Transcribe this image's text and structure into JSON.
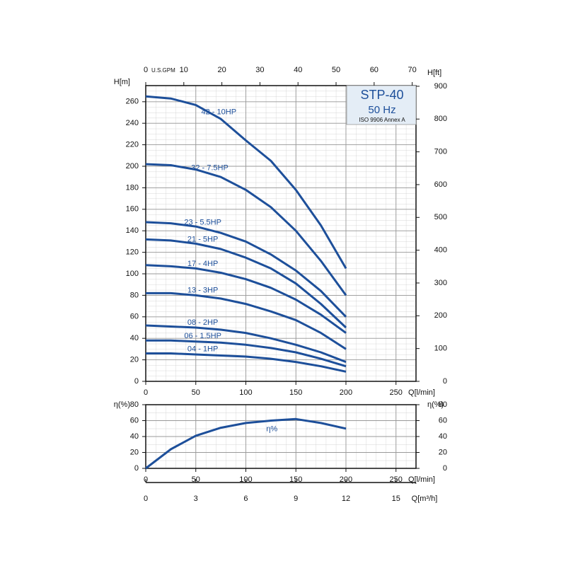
{
  "chart_data": [
    {
      "type": "line",
      "title": "STP-40",
      "subtitle": "50 Hz",
      "note": "ISO 9906 Annex A",
      "x_label": "Q[l/min]",
      "y_label": "H[m]",
      "y2_label": "H[ft]",
      "x": [
        0,
        25,
        50,
        75,
        100,
        125,
        150,
        175,
        200
      ],
      "xlim": [
        0,
        270
      ],
      "xticks": [
        0,
        50,
        100,
        150,
        200,
        250
      ],
      "ylim": [
        0,
        275
      ],
      "yticks": [
        0,
        20,
        40,
        60,
        80,
        100,
        120,
        140,
        160,
        180,
        200,
        220,
        240,
        260
      ],
      "y2lim": [
        0,
        902
      ],
      "y2ticks": [
        0,
        100,
        200,
        300,
        400,
        500,
        600,
        700,
        800,
        900
      ],
      "top_axis": {
        "label": "U.S.GPM",
        "lim": [
          0,
          71
        ],
        "ticks": [
          0,
          10,
          20,
          30,
          40,
          50,
          60,
          70
        ]
      },
      "color": "#1d4f9a",
      "grid": true,
      "series": [
        {
          "name": "42 - 10HP",
          "values": [
            265,
            263,
            257,
            244,
            224,
            205,
            178,
            145,
            105
          ]
        },
        {
          "name": "32 - 7.5HP",
          "values": [
            202,
            201,
            197,
            190,
            178,
            162,
            140,
            112,
            80
          ]
        },
        {
          "name": "23 - 5.5HP",
          "values": [
            148,
            147,
            144,
            138,
            130,
            118,
            103,
            84,
            60
          ]
        },
        {
          "name": "21 - 5HP",
          "values": [
            132,
            131,
            128,
            123,
            115,
            105,
            91,
            72,
            50
          ]
        },
        {
          "name": "17 - 4HP",
          "values": [
            108,
            107,
            105,
            101,
            95,
            87,
            76,
            62,
            45
          ]
        },
        {
          "name": "13 - 3HP",
          "values": [
            82,
            82,
            80,
            77,
            72,
            65,
            57,
            45,
            30
          ]
        },
        {
          "name": "08 - 2HP",
          "values": [
            52,
            51,
            50,
            48,
            45,
            40,
            34,
            27,
            18
          ]
        },
        {
          "name": "06 - 1.5HP",
          "values": [
            38,
            38,
            37,
            36,
            34,
            31,
            27,
            21,
            14
          ]
        },
        {
          "name": "04 - 1HP",
          "values": [
            26,
            26,
            25,
            24,
            23,
            21,
            18,
            14,
            9
          ]
        }
      ]
    },
    {
      "type": "line",
      "x_label": "Q[l/min]",
      "y_label": "η(%)",
      "y2_label": "η(%)",
      "x": [
        0,
        25,
        50,
        75,
        100,
        125,
        150,
        175,
        200
      ],
      "xlim": [
        0,
        270
      ],
      "xticks": [
        0,
        50,
        100,
        150,
        200,
        250
      ],
      "ylim": [
        0,
        80
      ],
      "yticks": [
        0,
        20,
        40,
        60,
        80
      ],
      "y2lim": [
        0,
        80
      ],
      "y2ticks": [
        0,
        20,
        40,
        60,
        80
      ],
      "bottom_axis": {
        "label": "Q[m³/h]",
        "lim": [
          0,
          16.2
        ],
        "ticks": [
          0,
          3,
          6,
          9,
          12,
          15
        ]
      },
      "color": "#1d4f9a",
      "grid": true,
      "series": [
        {
          "name": "η%",
          "values": [
            0,
            24,
            41,
            51,
            57,
            60,
            62,
            57,
            50
          ]
        }
      ]
    }
  ]
}
